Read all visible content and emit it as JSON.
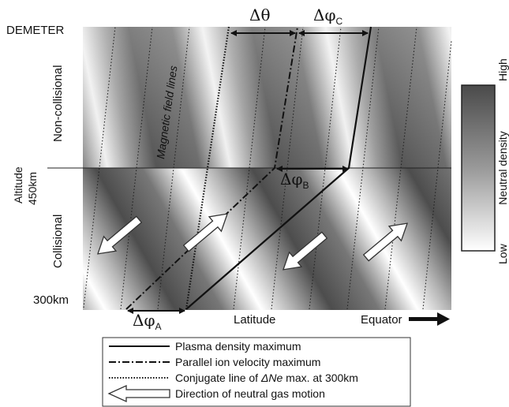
{
  "labels": {
    "satellite": "DEMETER",
    "region_upper": "Non-collisional",
    "region_lower": "Collisional",
    "altitude_axis": "Altitude",
    "altitude_mid": "450km",
    "altitude_low": "300km",
    "field_lines": "Magnetic field lines",
    "x_axis": "Latitude",
    "equator": "Equator"
  },
  "deltas": {
    "theta": "Δθ",
    "phi": "Δφ",
    "sub_a": "A",
    "sub_b": "B",
    "sub_c": "C"
  },
  "colorbar": {
    "title": "Neutral density",
    "high": "High",
    "low": "Low"
  },
  "legend": [
    {
      "style": "solid",
      "text": "Plasma density maximum"
    },
    {
      "style": "dashdot",
      "text": "Parallel ion velocity maximum"
    },
    {
      "style": "dotted",
      "text_pre": "Conjugate line of ",
      "text_em": "ΔNe",
      "text_post": " max. at 300km"
    },
    {
      "style": "arrow",
      "text": "Direction of neutral gas motion"
    }
  ]
}
